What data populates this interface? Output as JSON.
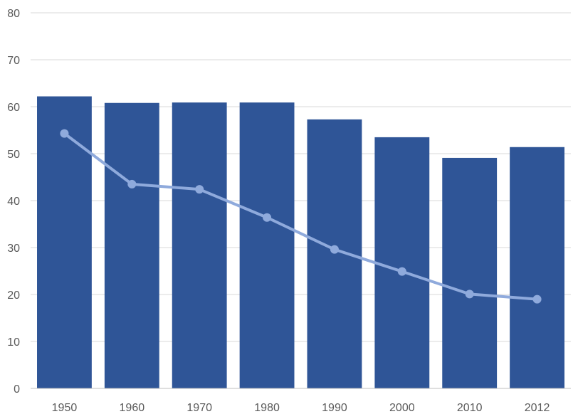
{
  "chart_data": {
    "type": "bar",
    "title": "",
    "xlabel": "",
    "ylabel": "",
    "categories": [
      "1950",
      "1960",
      "1970",
      "1980",
      "1990",
      "2000",
      "2010",
      "2012"
    ],
    "ylim": [
      0,
      80
    ],
    "yticks": [
      "0",
      "10",
      "20",
      "30",
      "40",
      "50",
      "60",
      "70",
      "80"
    ],
    "grid": true,
    "legend": "none",
    "series": [
      {
        "type": "bar",
        "color": "#2f5597",
        "values": [
          62.2,
          60.8,
          60.9,
          60.9,
          57.3,
          53.5,
          49.1,
          51.4
        ]
      },
      {
        "type": "line",
        "color": "#8faadc",
        "values": [
          54.3,
          43.5,
          42.4,
          36.4,
          29.6,
          24.9,
          20.1,
          19.0
        ]
      }
    ]
  }
}
